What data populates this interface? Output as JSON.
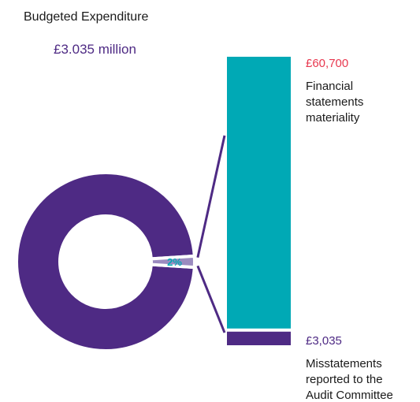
{
  "chart_data": {
    "type": "pie",
    "title": "Budgeted Expenditure",
    "total_label": "£3.035 million",
    "donut": {
      "slices": [
        {
          "name": "",
          "value": 98,
          "color": "#4E2A84"
        },
        {
          "name": "",
          "value": 2,
          "color": "#9B8BC0",
          "label": "2%"
        }
      ]
    },
    "stacked_bar": {
      "segments": [
        {
          "value": 3035,
          "value_label": "£3,035",
          "label_lines": [
            "Misstatements",
            "reported to the",
            "Audit Committee"
          ],
          "color": "#4E2A84",
          "value_color": "#4E2A84"
        },
        {
          "value": 60700,
          "value_label": "£60,700",
          "label_lines": [
            "Financial",
            "statements",
            "materiality"
          ],
          "color": "#00A9B5",
          "value_color": "#E8384F"
        }
      ]
    },
    "colors": {
      "title": "#1a1a1a",
      "total": "#4E2A84",
      "donut_label": "#00A9B5",
      "connector": "#4E2A84"
    }
  }
}
